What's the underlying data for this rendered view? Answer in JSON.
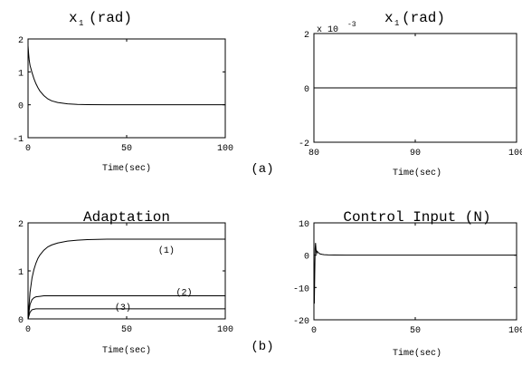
{
  "panel_labels": [
    "(a)",
    "(b)"
  ],
  "chart_data": [
    {
      "type": "line",
      "title_main": "x",
      "title_sub": "1",
      "title_rest": " (rad)",
      "xlabel": "Time(sec)",
      "ylabel": "",
      "xlim": [
        0,
        100
      ],
      "ylim": [
        -1,
        2
      ],
      "xticks": [
        0,
        50,
        100
      ],
      "yticks": [
        -1,
        0,
        1,
        2
      ],
      "xtick_labels": [
        "0",
        "50",
        "100"
      ],
      "ytick_labels": [
        "-1",
        "0",
        "1",
        "2"
      ],
      "grid": false,
      "series": [
        {
          "x": [
            0,
            0.3,
            0.6,
            1,
            2,
            3,
            4,
            5,
            6,
            8,
            10,
            12,
            15,
            20,
            25,
            30,
            40,
            50,
            60,
            70,
            80,
            90,
            100
          ],
          "y": [
            1.8,
            1.55,
            1.35,
            1.2,
            0.98,
            0.79,
            0.64,
            0.52,
            0.42,
            0.28,
            0.18,
            0.12,
            0.07,
            0.03,
            0.013,
            0.006,
            0.002,
            0.001,
            0,
            0,
            0,
            0,
            0
          ]
        }
      ]
    },
    {
      "type": "line",
      "title_main": "x",
      "title_sub": "1",
      "title_rest": " (rad)",
      "axis_exponent_base": "x 10",
      "axis_exponent_power": "-3",
      "xlabel": "Time(sec)",
      "ylabel": "",
      "xlim": [
        80,
        100
      ],
      "ylim": [
        -2,
        2
      ],
      "xticks": [
        80,
        90,
        100
      ],
      "yticks": [
        -2,
        0,
        2
      ],
      "xtick_labels": [
        "80",
        "90",
        "100"
      ],
      "ytick_labels": [
        "-2",
        "0",
        "2"
      ],
      "grid": false,
      "series": [
        {
          "x": [
            80,
            100
          ],
          "y": [
            0,
            0
          ]
        }
      ]
    },
    {
      "type": "line",
      "title_main": "Adaptation",
      "xlabel": "Time(sec)",
      "ylabel": "",
      "xlim": [
        0,
        100
      ],
      "ylim": [
        0,
        2
      ],
      "xticks": [
        0,
        50,
        100
      ],
      "yticks": [
        0,
        1,
        2
      ],
      "xtick_labels": [
        "0",
        "50",
        "100"
      ],
      "ytick_labels": [
        "0",
        "1",
        "2"
      ],
      "grid": false,
      "annotations": [
        {
          "text": "(1)",
          "x": 66,
          "y": 1.45
        },
        {
          "text": "(2)",
          "x": 75,
          "y": 0.58
        },
        {
          "text": "(3)",
          "x": 44,
          "y": 0.26
        }
      ],
      "series": [
        {
          "label": "(1)",
          "x": [
            0,
            1,
            2,
            3,
            4,
            5,
            6,
            8,
            10,
            12,
            15,
            20,
            25,
            30,
            40,
            50,
            60,
            70,
            80,
            90,
            100
          ],
          "y": [
            0,
            0.55,
            0.85,
            1.03,
            1.16,
            1.26,
            1.33,
            1.43,
            1.5,
            1.54,
            1.58,
            1.62,
            1.64,
            1.65,
            1.66,
            1.66,
            1.66,
            1.66,
            1.66,
            1.66,
            1.66
          ]
        },
        {
          "label": "(2)",
          "x": [
            0,
            1,
            2,
            3,
            4,
            6,
            8,
            10,
            15,
            20,
            30,
            50,
            100
          ],
          "y": [
            0,
            0.3,
            0.4,
            0.44,
            0.46,
            0.47,
            0.48,
            0.48,
            0.48,
            0.48,
            0.48,
            0.48,
            0.48
          ]
        },
        {
          "label": "(3)",
          "x": [
            0,
            1,
            2,
            3,
            4,
            6,
            8,
            10,
            20,
            50,
            100
          ],
          "y": [
            0,
            0.14,
            0.19,
            0.2,
            0.21,
            0.21,
            0.21,
            0.21,
            0.21,
            0.21,
            0.21
          ]
        }
      ]
    },
    {
      "type": "line",
      "title_main": "Control Input (N)",
      "xlabel": "Time(sec)",
      "ylabel": "",
      "xlim": [
        0,
        100
      ],
      "ylim": [
        -20,
        10
      ],
      "xticks": [
        0,
        50,
        100
      ],
      "yticks": [
        -20,
        -10,
        0,
        10
      ],
      "xtick_labels": [
        "0",
        "50",
        "100"
      ],
      "ytick_labels": [
        "-20",
        "-10",
        "0",
        "10"
      ],
      "grid": false,
      "series": [
        {
          "x": [
            0,
            0.2,
            0.4,
            0.6,
            0.8,
            1,
            1.3,
            1.6,
            2,
            2.5,
            3,
            4,
            5,
            7,
            10,
            20,
            50,
            100
          ],
          "y": [
            0,
            -15,
            -6,
            2,
            3.8,
            2,
            0.3,
            1.2,
            0.9,
            0.6,
            0.4,
            0.25,
            0.15,
            0.08,
            0.04,
            0,
            0,
            0
          ]
        }
      ]
    }
  ]
}
